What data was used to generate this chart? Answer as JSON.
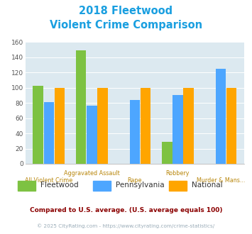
{
  "title_line1": "2018 Fleetwood",
  "title_line2": "Violent Crime Comparison",
  "categories": [
    "All Violent Crime",
    "Aggravated Assault",
    "Rape",
    "Robbery",
    "Murder & Mans..."
  ],
  "fleetwood": [
    103,
    149,
    0,
    29,
    0
  ],
  "pennsylvania": [
    81,
    76,
    84,
    90,
    125
  ],
  "national": [
    100,
    100,
    100,
    100,
    100
  ],
  "fleetwood_color": "#7dc242",
  "pennsylvania_color": "#4da6ff",
  "national_color": "#ffa500",
  "ylim": [
    0,
    160
  ],
  "yticks": [
    0,
    20,
    40,
    60,
    80,
    100,
    120,
    140,
    160
  ],
  "plot_bg": "#dce9f0",
  "title_color": "#1a9fe0",
  "xlabel_color": "#b8860b",
  "legend_text_color": "#333333",
  "legend_labels": [
    "Fleetwood",
    "Pennsylvania",
    "National"
  ],
  "footnote1": "Compared to U.S. average. (U.S. average equals 100)",
  "footnote2": "© 2025 CityRating.com - https://www.cityrating.com/crime-statistics/",
  "footnote1_color": "#8B0000",
  "footnote2_color": "#9aacb8",
  "url_color": "#4da6ff"
}
